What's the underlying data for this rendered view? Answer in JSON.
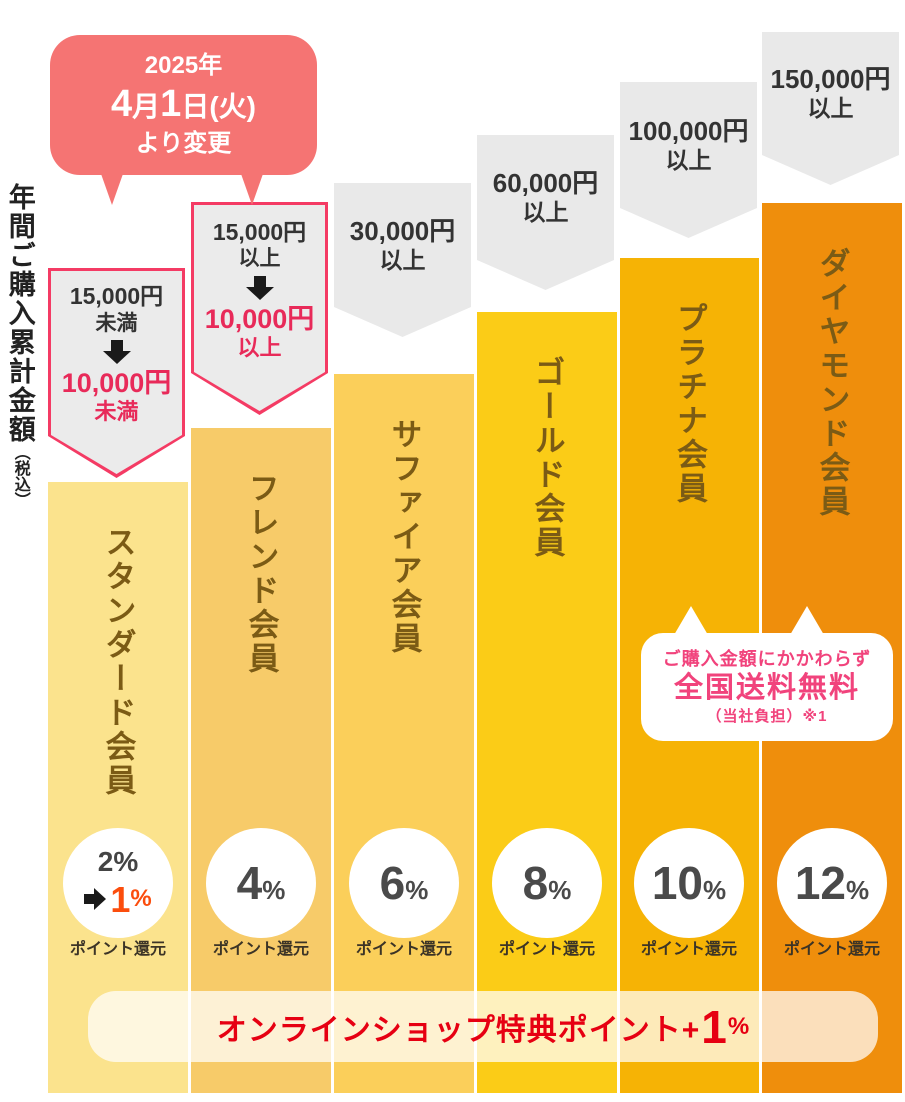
{
  "axis_label": {
    "main": "年間ご購入累計金額",
    "sub": "（税込）"
  },
  "change_notice": {
    "line1": "2025年",
    "date": {
      "d1": "4",
      "u1": "月",
      "d2": "1",
      "u2": "日(火)"
    },
    "line3": "より変更"
  },
  "tiers": [
    {
      "name": "スタンダード会員",
      "color": "#fbe38d",
      "threshold": {
        "old_amount": "15,000円",
        "old_qualifier": "未満",
        "new_amount": "10,000円",
        "new_qualifier": "未満",
        "changed": true
      },
      "rate": {
        "old": "2%",
        "new_value": "1",
        "new_unit": "%",
        "changed": true
      },
      "rate_label": "ポイント還元"
    },
    {
      "name": "フレンド会員",
      "color": "#f7cb69",
      "threshold": {
        "old_amount": "15,000円",
        "old_qualifier": "以上",
        "new_amount": "10,000円",
        "new_qualifier": "以上",
        "changed": true
      },
      "rate": {
        "value": "4",
        "unit": "%"
      },
      "rate_label": "ポイント還元"
    },
    {
      "name": "サファイア会員",
      "color": "#fbcf5a",
      "threshold": {
        "amount": "30,000円",
        "qualifier": "以上"
      },
      "rate": {
        "value": "6",
        "unit": "%"
      },
      "rate_label": "ポイント還元"
    },
    {
      "name": "ゴールド会員",
      "color": "#fbcc17",
      "threshold": {
        "amount": "60,000円",
        "qualifier": "以上"
      },
      "rate": {
        "value": "8",
        "unit": "%"
      },
      "rate_label": "ポイント還元"
    },
    {
      "name": "プラチナ会員",
      "color": "#f6b305",
      "threshold": {
        "amount": "100,000円",
        "qualifier": "以上"
      },
      "rate": {
        "value": "10",
        "unit": "%"
      },
      "rate_label": "ポイント還元"
    },
    {
      "name": "ダイヤモンド会員",
      "color": "#ef8e0c",
      "threshold": {
        "amount": "150,000円",
        "qualifier": "以上"
      },
      "rate": {
        "value": "12",
        "unit": "%"
      },
      "rate_label": "ポイント還元"
    }
  ],
  "shipping_callout": {
    "line1": "ご購入金額にかかわらず",
    "line2": "全国送料無料",
    "line3": "（当社負担）※1"
  },
  "bottom_banner": {
    "prefix": "オンラインショップ特典ポイント+",
    "value": "1",
    "unit": "%"
  },
  "colors": {
    "bubble": "#f57473",
    "badge_bg": "#e9e9e9",
    "badge_border_pink": "#f43b64",
    "threshold_new_pink": "#e82a59",
    "tier_title_brown": "#7b5b15",
    "rate_gray": "#4a4a4a",
    "rate_new_orange": "#fb4d0d",
    "callout_pink": "#f1437c",
    "banner_red": "#e60012"
  }
}
